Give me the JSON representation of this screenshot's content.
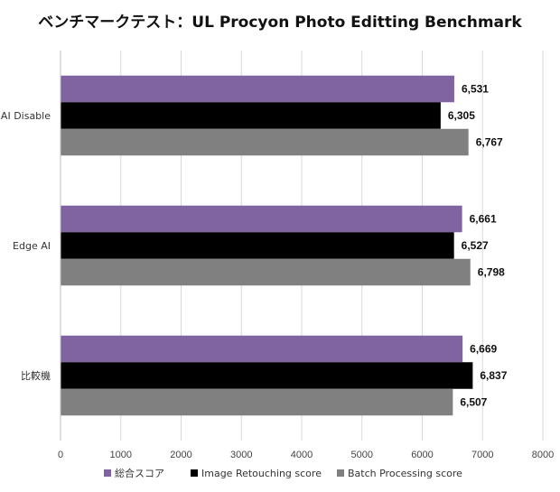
{
  "chart_data": {
    "type": "bar",
    "orientation": "horizontal",
    "title": "ベンチマークテスト：UL Procyon Photo Editting Benchmark",
    "categories": [
      "AI Disable",
      "Edge AI",
      "比較機"
    ],
    "series": [
      {
        "name": "総合スコア",
        "color": "#8064a2",
        "values": [
          6531,
          6661,
          6669
        ],
        "labels": [
          "6,531",
          "6,661",
          "6,669"
        ]
      },
      {
        "name": "Image Retouching score",
        "color": "#000000",
        "values": [
          6305,
          6527,
          6837
        ],
        "labels": [
          "6,305",
          "6,527",
          "6,837"
        ]
      },
      {
        "name": "Batch Processing score",
        "color": "#808080",
        "values": [
          6767,
          6798,
          6507
        ],
        "labels": [
          "6,767",
          "6,798",
          "6,507"
        ]
      }
    ],
    "xlim": [
      0,
      8000
    ],
    "xticks": [
      "0",
      "1000",
      "2000",
      "3000",
      "4000",
      "5000",
      "6000",
      "7000",
      "8000"
    ],
    "grid": true,
    "legend_position": "bottom",
    "xlabel": "",
    "ylabel": ""
  }
}
